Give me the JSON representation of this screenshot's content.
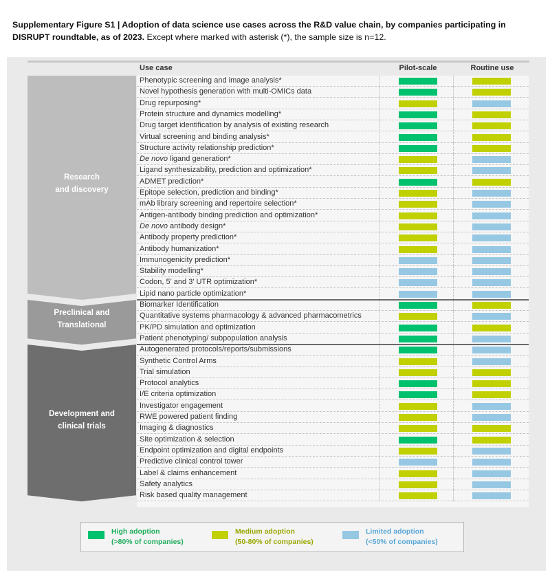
{
  "caption": {
    "bold": "Supplementary Figure S1 | Adoption of data science use cases across the R&D value chain, by companies participating in DISRUPT roundtable, as of 2023.",
    "normal": " Except where marked with asterisk (*), the sample size is n=12."
  },
  "columns": {
    "use_case": "Use case",
    "pilot": "Pilot-scale",
    "routine": "Routine use"
  },
  "colors": {
    "high": "#00c16e",
    "medium": "#c0d000",
    "limited": "#96c8e4",
    "chevron_1": "#bdbdbd",
    "chevron_2": "#9a9a9a",
    "chevron_3": "#6e6e6e"
  },
  "legend": [
    {
      "key": "high",
      "line1": "High adoption",
      "line2": "(>80% of companies)",
      "text_color": "#1fae5c"
    },
    {
      "key": "medium",
      "line1": "Medium adoption",
      "line2": "(50-80% of companies)",
      "text_color": "#9aa700"
    },
    {
      "key": "limited",
      "line1": "Limited adoption",
      "line2": "(<50% of companies)",
      "text_color": "#5aa7d6"
    }
  ],
  "chart_data": {
    "type": "table",
    "columns": [
      "Use case",
      "Pilot-scale",
      "Routine use"
    ],
    "categories": [
      "high",
      "medium",
      "limited"
    ],
    "groups": [
      {
        "name_lines": [
          "Research",
          "and discovery"
        ],
        "rows": [
          {
            "label": "Phenotypic screening and image analysis*",
            "pilot": "high",
            "routine": "medium"
          },
          {
            "label": "Novel hypothesis generation with multi-OMICs data",
            "pilot": "high",
            "routine": "medium"
          },
          {
            "label": "Drug repurposing*",
            "pilot": "medium",
            "routine": "limited"
          },
          {
            "label": "Protein structure and dynamics modelling*",
            "pilot": "high",
            "routine": "medium"
          },
          {
            "label": "Drug target identification by analysis of existing research",
            "pilot": "high",
            "routine": "medium"
          },
          {
            "label": "Virtual screening and binding analysis*",
            "pilot": "high",
            "routine": "medium"
          },
          {
            "label": "Structure activity relationship prediction*",
            "pilot": "high",
            "routine": "medium"
          },
          {
            "label_italic": "De novo",
            "label": " ligand generation*",
            "pilot": "medium",
            "routine": "limited"
          },
          {
            "label": "Ligand synthesizability, prediction and optimization*",
            "pilot": "medium",
            "routine": "limited"
          },
          {
            "label": "ADMET prediction*",
            "pilot": "high",
            "routine": "medium"
          },
          {
            "label": "Epitope selection, prediction and binding*",
            "pilot": "medium",
            "routine": "limited"
          },
          {
            "label": "mAb library screening and repertoire selection*",
            "pilot": "medium",
            "routine": "limited"
          },
          {
            "label": "Antigen-antibody binding prediction and optimization*",
            "pilot": "medium",
            "routine": "limited"
          },
          {
            "label_italic": "De novo",
            "label": " antibody design*",
            "pilot": "medium",
            "routine": "limited"
          },
          {
            "label": "Antibody property prediction*",
            "pilot": "medium",
            "routine": "limited"
          },
          {
            "label": "Antibody humanization*",
            "pilot": "medium",
            "routine": "limited"
          },
          {
            "label": "Immunogenicity prediction*",
            "pilot": "limited",
            "routine": "limited"
          },
          {
            "label": "Stability modelling*",
            "pilot": "limited",
            "routine": "limited"
          },
          {
            "label": "Codon, 5' and 3' UTR optimization*",
            "pilot": "limited",
            "routine": "limited"
          },
          {
            "label": "Lipid nano particle optimization*",
            "pilot": "limited",
            "routine": "limited"
          }
        ]
      },
      {
        "name_lines": [
          "Preclinical and",
          "Translational"
        ],
        "rows": [
          {
            "label": "Biomarker Identification",
            "pilot": "high",
            "routine": "medium"
          },
          {
            "label": "Quantitative systems pharmacology & advanced pharmacometrics",
            "pilot": "medium",
            "routine": "limited"
          },
          {
            "label": "PK/PD simulation and optimization",
            "pilot": "high",
            "routine": "medium"
          },
          {
            "label": "Patient phenotyping/ subpopulation analysis",
            "pilot": "high",
            "routine": "limited"
          }
        ]
      },
      {
        "name_lines": [
          "Development and",
          "clinical trials"
        ],
        "rows": [
          {
            "label": "Autogenerated protocols/reports/submissions",
            "pilot": "high",
            "routine": "limited"
          },
          {
            "label": "Synthetic Control Arms",
            "pilot": "medium",
            "routine": "limited"
          },
          {
            "label": "Trial simulation",
            "pilot": "medium",
            "routine": "medium"
          },
          {
            "label": "Protocol analytics",
            "pilot": "high",
            "routine": "medium"
          },
          {
            "label": "I/E criteria optimization",
            "pilot": "high",
            "routine": "medium"
          },
          {
            "label": "Investigator engagement",
            "pilot": "medium",
            "routine": "limited"
          },
          {
            "label": "RWE powered patient finding",
            "pilot": "medium",
            "routine": "limited"
          },
          {
            "label": "Imaging & diagnostics",
            "pilot": "medium",
            "routine": "medium"
          },
          {
            "label": "Site optimization & selection",
            "pilot": "high",
            "routine": "medium"
          },
          {
            "label": "Endpoint optimization and digital endpoints",
            "pilot": "medium",
            "routine": "limited"
          },
          {
            "label": "Predictive clinical control tower",
            "pilot": "limited",
            "routine": "limited"
          },
          {
            "label": "Label & claims enhancement",
            "pilot": "medium",
            "routine": "limited"
          },
          {
            "label": "Safety analytics",
            "pilot": "medium",
            "routine": "limited"
          },
          {
            "label": "Risk based quality management",
            "pilot": "medium",
            "routine": "limited"
          }
        ]
      }
    ]
  }
}
